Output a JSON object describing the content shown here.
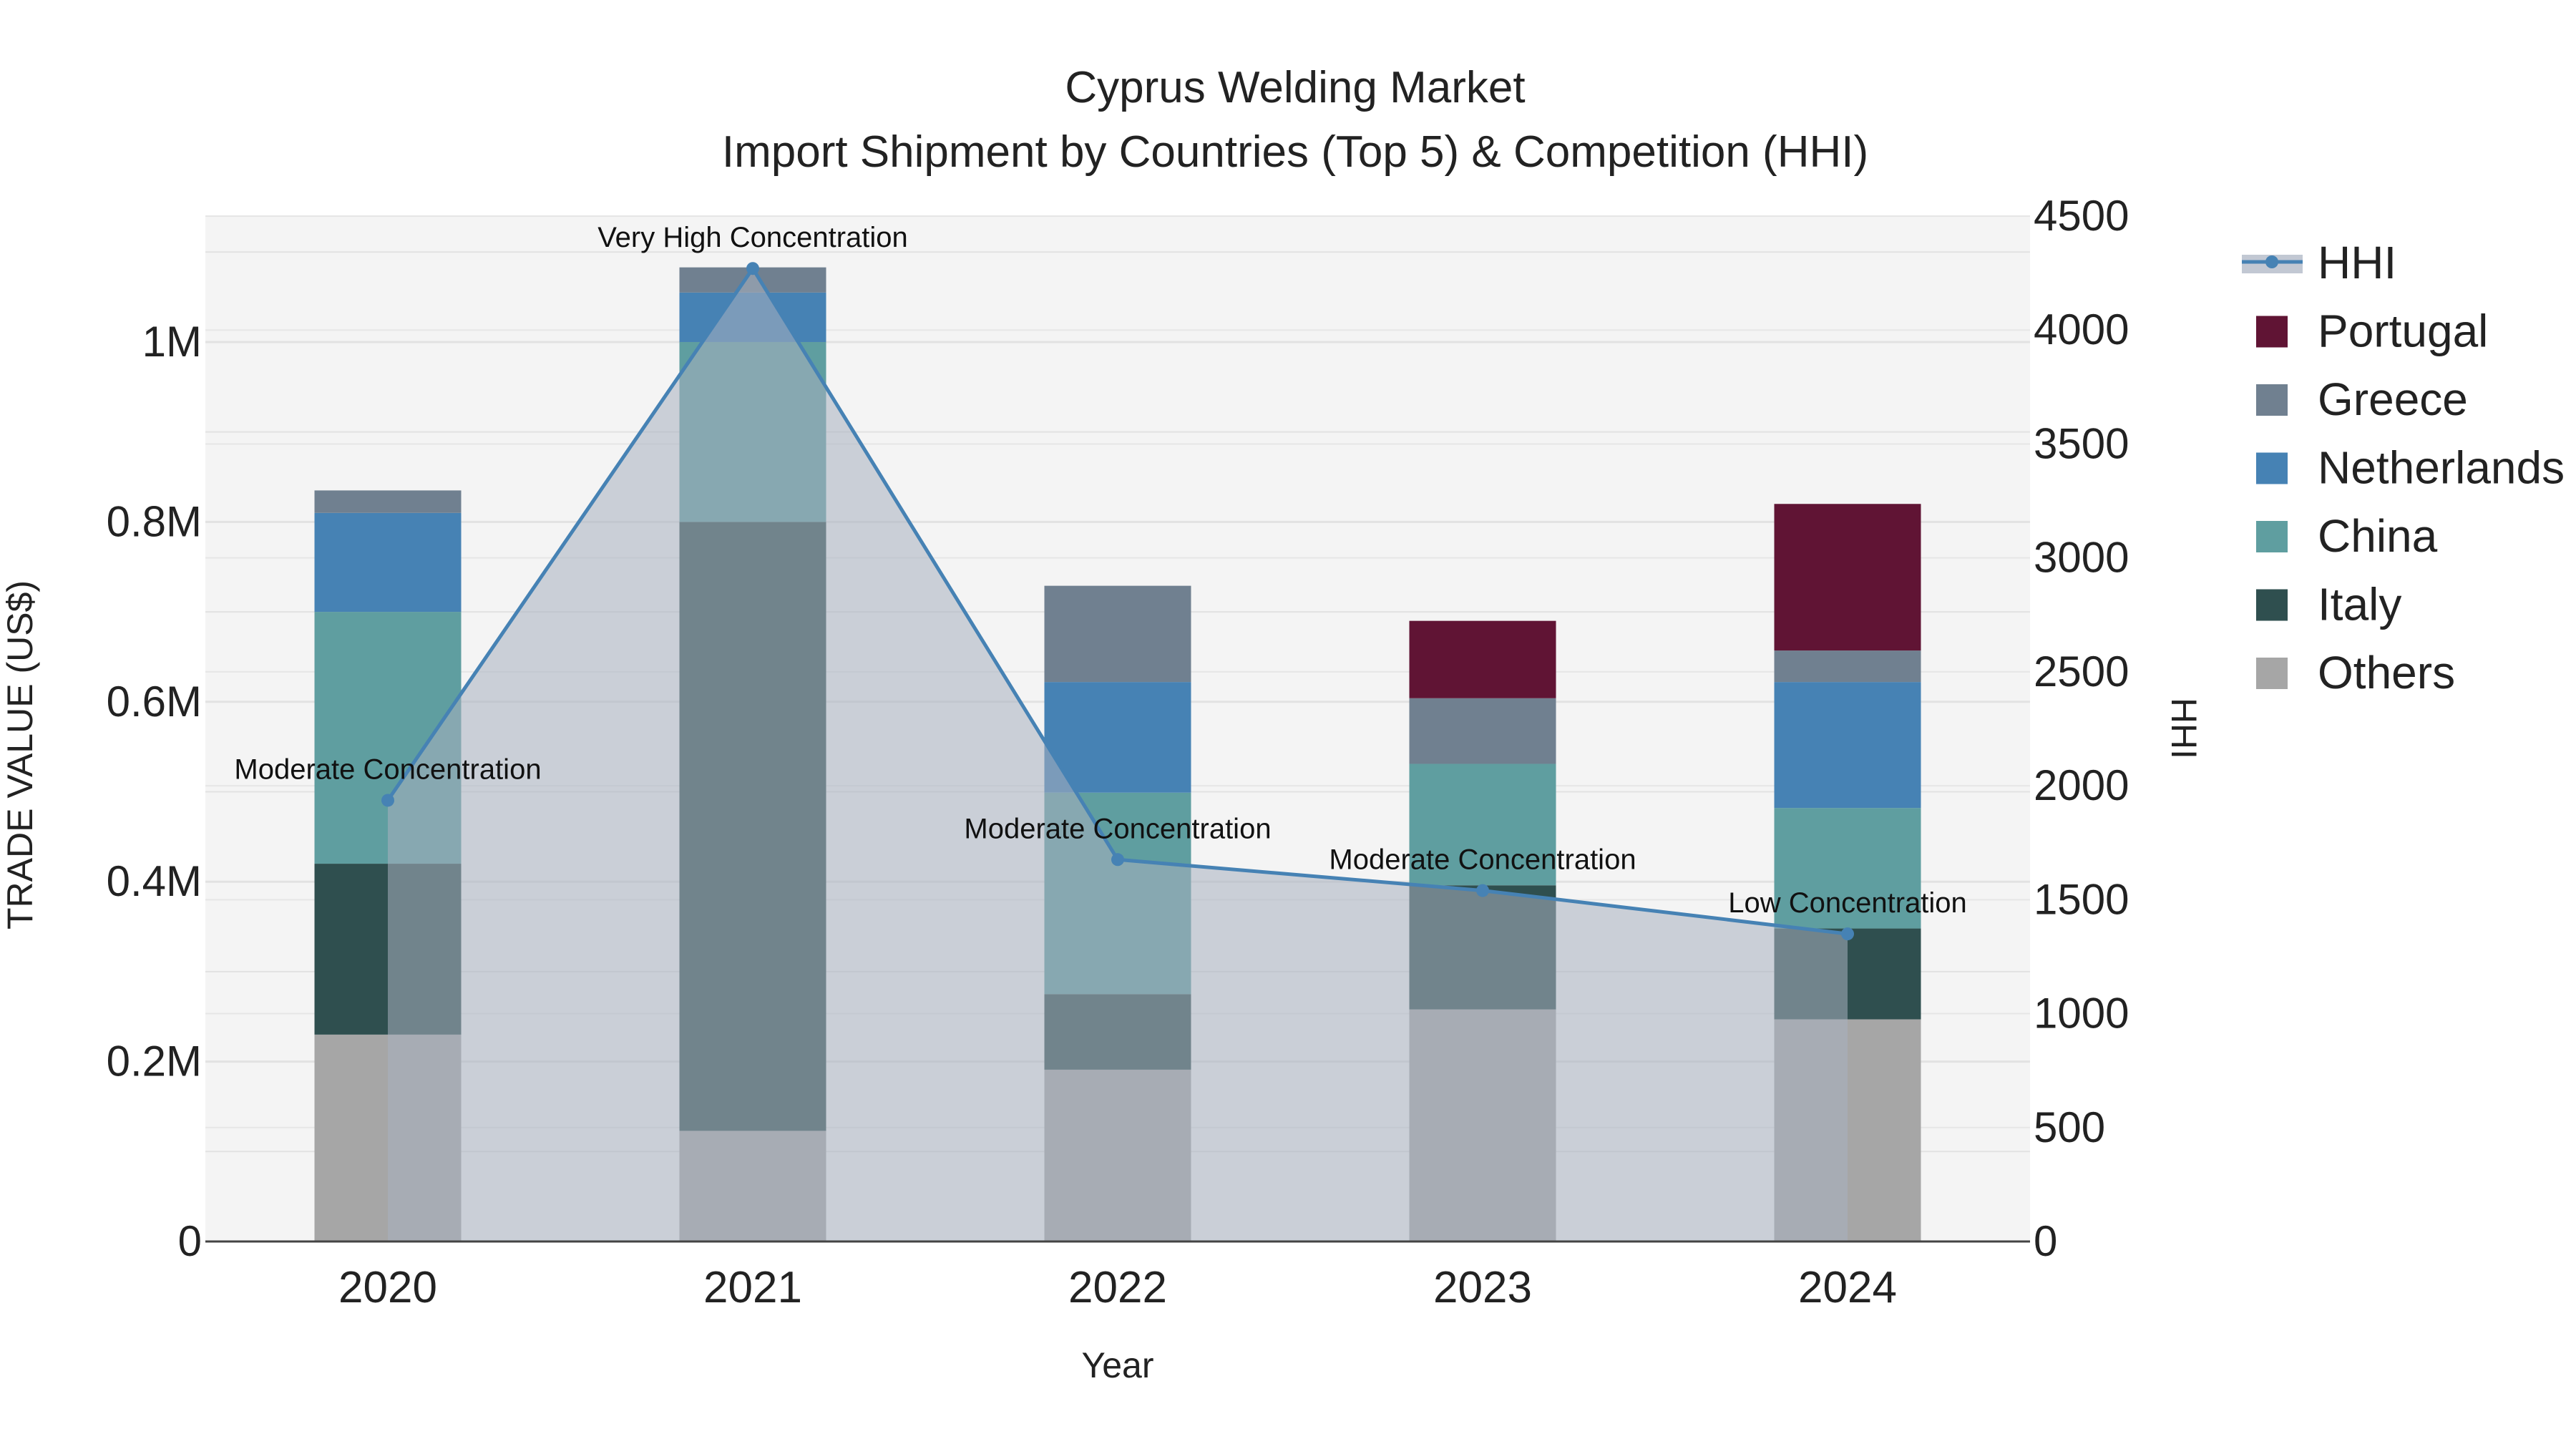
{
  "chart_data": {
    "type": "bar",
    "stacked": true,
    "title": "Cyprus Welding Market",
    "subtitle": "Import Shipment by Countries (Top 5) & Competition (HHI)",
    "xlabel": "Year",
    "ylabel": "TRADE VALUE (US$)",
    "y2label": "HHI",
    "categories": [
      "2020",
      "2021",
      "2022",
      "2023",
      "2024"
    ],
    "ylim": [
      0,
      1140000
    ],
    "y2lim": [
      0,
      4500
    ],
    "y_ticks": [
      0,
      200000,
      400000,
      600000,
      800000,
      1000000
    ],
    "y_tick_labels": [
      "0",
      "0.2M",
      "0.4M",
      "0.6M",
      "0.8M",
      "1M"
    ],
    "y2_ticks": [
      0,
      500,
      1000,
      1500,
      2000,
      2500,
      3000,
      3500,
      4000,
      4500
    ],
    "y2_tick_labels": [
      "0",
      "500",
      "1000",
      "1500",
      "2000",
      "2500",
      "3000",
      "3500",
      "4000",
      "4500"
    ],
    "series": [
      {
        "name": "Others",
        "color": "#a6a6a6",
        "values": [
          230000,
          123000,
          191000,
          258000,
          247000
        ]
      },
      {
        "name": "Italy",
        "color": "#2f4f4f",
        "values": [
          190000,
          677000,
          84000,
          138000,
          101000
        ]
      },
      {
        "name": "China",
        "color": "#5f9ea0",
        "values": [
          280000,
          200000,
          224000,
          135000,
          134000
        ]
      },
      {
        "name": "Netherlands",
        "color": "#4682b4",
        "values": [
          110000,
          55000,
          123000,
          0,
          140000
        ]
      },
      {
        "name": "Greece",
        "color": "#708090",
        "values": [
          25000,
          28000,
          107000,
          73000,
          35000
        ]
      },
      {
        "name": "Portugal",
        "color": "#601434",
        "values": [
          0,
          0,
          0,
          86000,
          163000
        ]
      }
    ],
    "hhi": {
      "name": "HHI",
      "color": "#4682b4",
      "values": [
        1936,
        4270,
        1676,
        1540,
        1350
      ],
      "annotations": [
        "Moderate Concentration",
        "Very High Concentration",
        "Moderate Concentration",
        "Moderate Concentration",
        "Low Concentration"
      ]
    },
    "legend": [
      "HHI",
      "Portugal",
      "Greece",
      "Netherlands",
      "China",
      "Italy",
      "Others"
    ],
    "legend_position": "top-right"
  }
}
